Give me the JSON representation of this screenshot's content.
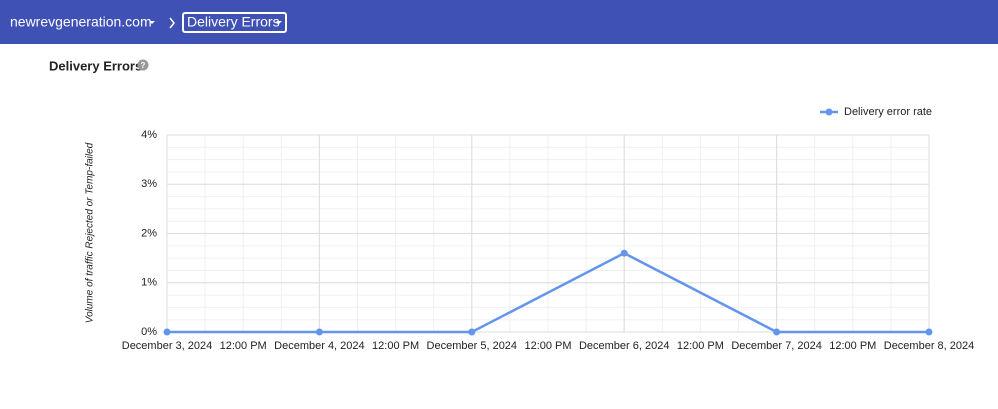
{
  "header": {
    "domain": "newrevgeneration.com",
    "page": "Delivery Errors"
  },
  "chart_data": {
    "type": "line",
    "title": "Delivery Errors",
    "ylabel": "Volume of traffic Rejected or Temp-failed",
    "categories": [
      "December 3, 2024",
      "December 4, 2024",
      "December 5, 2024",
      "December 6, 2024",
      "December 7, 2024",
      "December 8, 2024"
    ],
    "between_labels": [
      "12:00 PM",
      "12:00 PM",
      "12:00 PM",
      "12:00 PM",
      "12:00 PM"
    ],
    "series": [
      {
        "name": "Delivery error rate",
        "color": "#6495ed",
        "values": [
          0,
          0,
          0,
          1.6,
          0,
          0
        ]
      }
    ],
    "ylim": [
      0,
      4
    ],
    "yticks": [
      {
        "value": 0,
        "label": "0%"
      },
      {
        "value": 1,
        "label": "1%"
      },
      {
        "value": 2,
        "label": "2%"
      },
      {
        "value": 3,
        "label": "3%"
      },
      {
        "value": 4,
        "label": "4%"
      }
    ],
    "grid": true,
    "legend": "top-right"
  }
}
